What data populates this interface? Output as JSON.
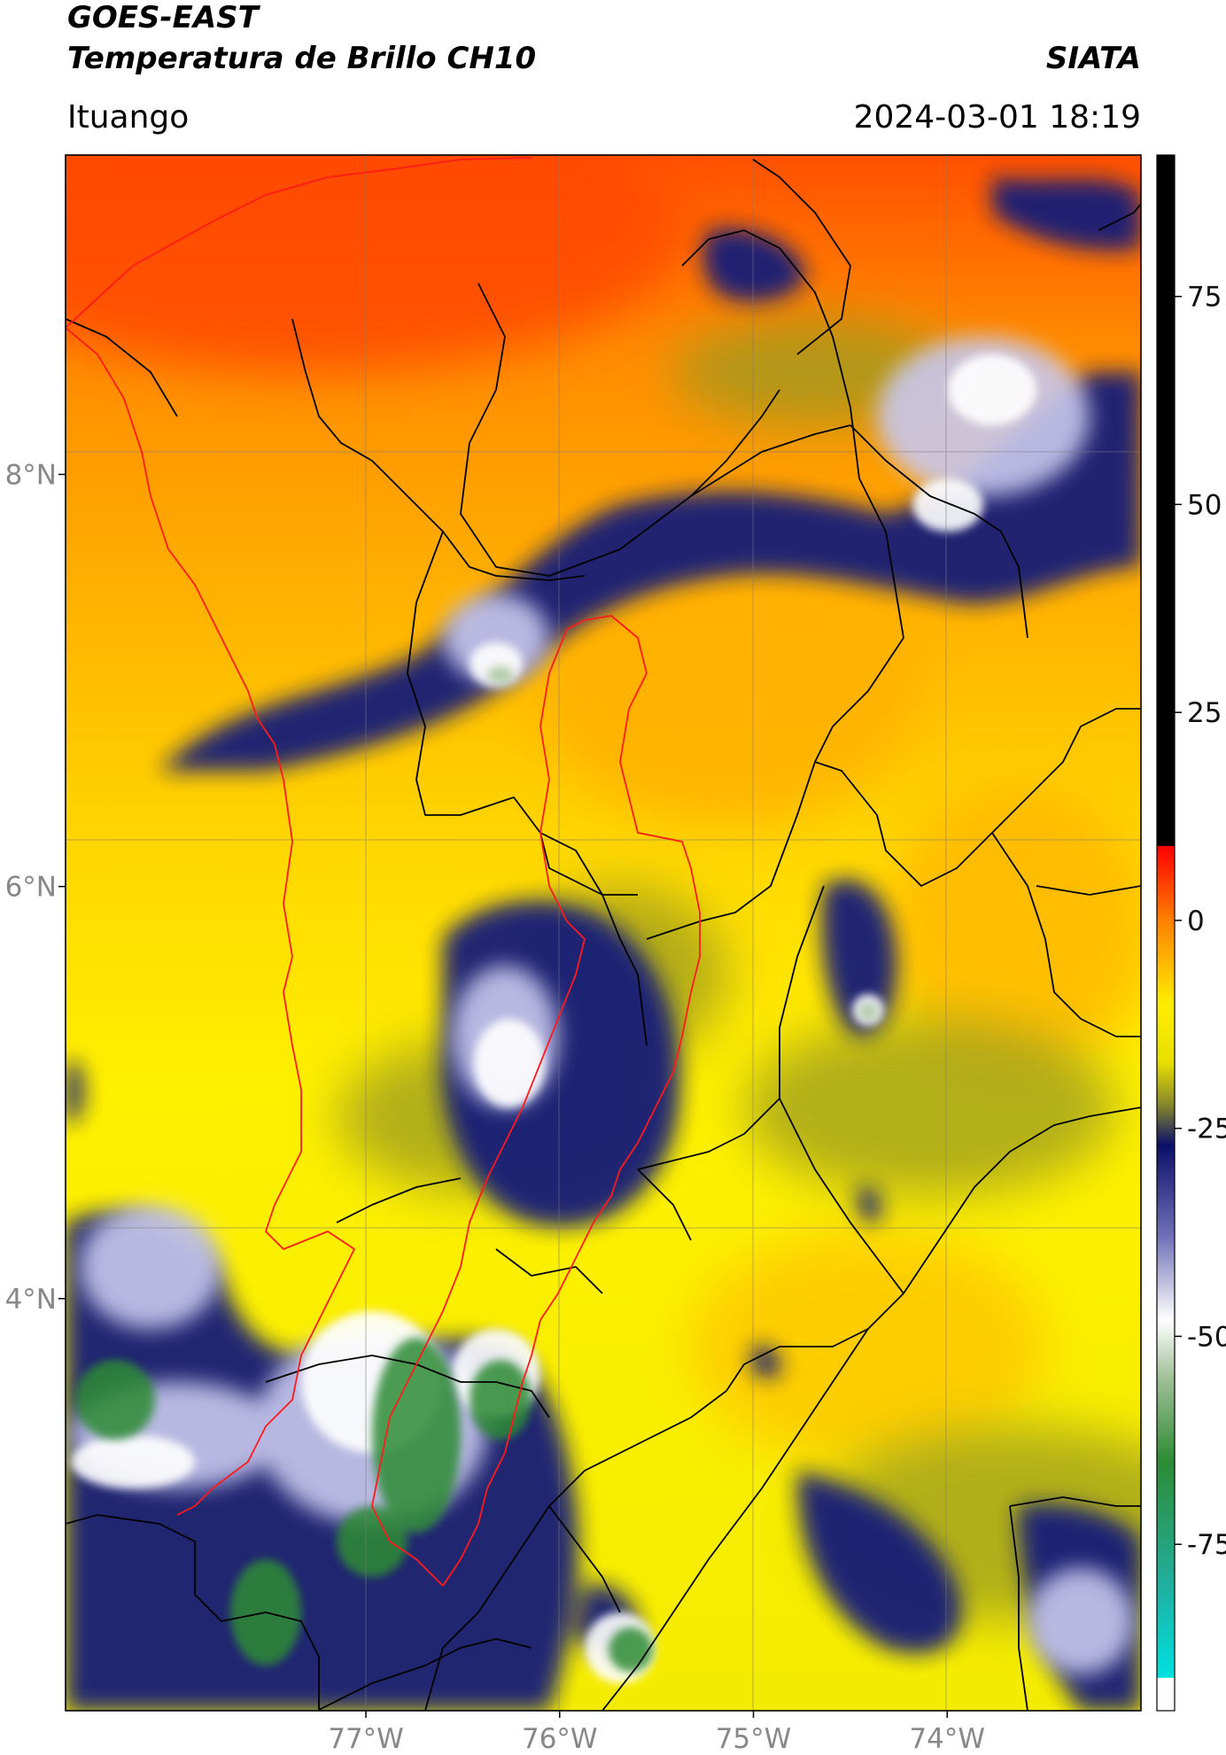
{
  "header": {
    "satellite": "GOES-EAST",
    "product": "Temperatura de Brillo CH10",
    "brand": "SIATA",
    "location": "Ituango",
    "timestamp": "2024-03-01 18:19"
  },
  "map": {
    "extent": {
      "lon_min": -78.55,
      "lon_max": -73.0,
      "lat_min": 2.0,
      "lat_max": 9.55
    },
    "lat_ticks": [
      {
        "value": 8,
        "label": "8°N"
      },
      {
        "value": 6,
        "label": "6°N"
      },
      {
        "value": 4,
        "label": "4°N"
      }
    ],
    "lon_ticks": [
      {
        "value": -77,
        "label": "77°W"
      },
      {
        "value": -76,
        "label": "76°W"
      },
      {
        "value": -75,
        "label": "75°W"
      },
      {
        "value": -74,
        "label": "74°W"
      }
    ],
    "gridlines": true,
    "colors": {
      "warm_top": "#ff5a00",
      "mid_orange": "#ffa000",
      "yellow": "#ffee00",
      "olive": "#a6a31a",
      "navy": "#141c78",
      "white": "#ffffff",
      "green": "#2e8b34",
      "boundary_black": "#000000",
      "boundary_red": "#ff1a1a"
    }
  },
  "colorbar": {
    "label_values": [
      75,
      50,
      25,
      0,
      -25,
      -50,
      -75
    ],
    "labels": [
      "75",
      "50",
      "25",
      "0",
      "-25",
      "-50",
      "-75"
    ],
    "range": [
      -95,
      92
    ],
    "stops": [
      {
        "value": 92,
        "color": "#000000"
      },
      {
        "value": 9,
        "color": "#000000"
      },
      {
        "value": 8.9,
        "color": "#ff0000"
      },
      {
        "value": 0,
        "color": "#ff8000"
      },
      {
        "value": -10,
        "color": "#ffee00"
      },
      {
        "value": -17,
        "color": "#e8e000"
      },
      {
        "value": -22,
        "color": "#8a8a2a"
      },
      {
        "value": -27,
        "color": "#0a1068"
      },
      {
        "value": -38,
        "color": "#7070b8"
      },
      {
        "value": -48,
        "color": "#ffffff"
      },
      {
        "value": -55,
        "color": "#a0c098"
      },
      {
        "value": -65,
        "color": "#2e8b34"
      },
      {
        "value": -80,
        "color": "#20b0a0"
      },
      {
        "value": -91,
        "color": "#00e0e0"
      },
      {
        "value": -91.1,
        "color": "#ffffff"
      },
      {
        "value": -95,
        "color": "#ffffff"
      }
    ]
  }
}
